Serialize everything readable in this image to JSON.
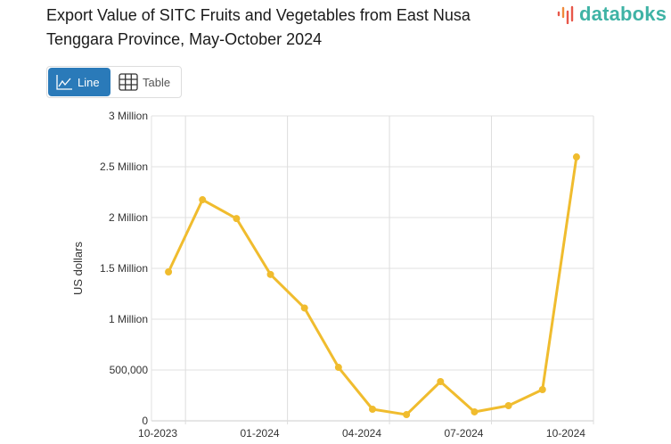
{
  "title": "Export Value of SITC Fruits and Vegetables from East Nusa Tenggara Province, May-October 2024",
  "logo": {
    "text": "databoks",
    "color": "#3fb3a5",
    "accent": "#e8574a"
  },
  "view_toggle": {
    "line_label": "Line",
    "table_label": "Table",
    "active": "Line",
    "active_color": "#2a7ab9"
  },
  "chart_data": {
    "type": "line",
    "title": "Export Value of SITC Fruits and Vegetables from East Nusa Tenggara Province, May-October 2024",
    "ylabel": "US dollars",
    "xlabel": "",
    "x": [
      "10-2023",
      "11-2023",
      "12-2023",
      "01-2024",
      "02-2024",
      "03-2024",
      "04-2024",
      "05-2024",
      "06-2024",
      "07-2024",
      "08-2024",
      "09-2024",
      "10-2024"
    ],
    "x_tick_labels": [
      "10-2023",
      "01-2024",
      "04-2024",
      "07-2024",
      "10-2024"
    ],
    "y_tick_labels": [
      "0",
      "500,000",
      "1 Million",
      "1.5 Million",
      "2 Million",
      "2.5 Million",
      "3 Million"
    ],
    "ylim": [
      0,
      3000000
    ],
    "grid": true,
    "series": [
      {
        "color": "#f0bc2e",
        "values": [
          1465000,
          2175000,
          1990000,
          1440000,
          1110000,
          526000,
          114000,
          61000,
          386000,
          88000,
          149000,
          307000,
          2596000
        ]
      }
    ]
  }
}
